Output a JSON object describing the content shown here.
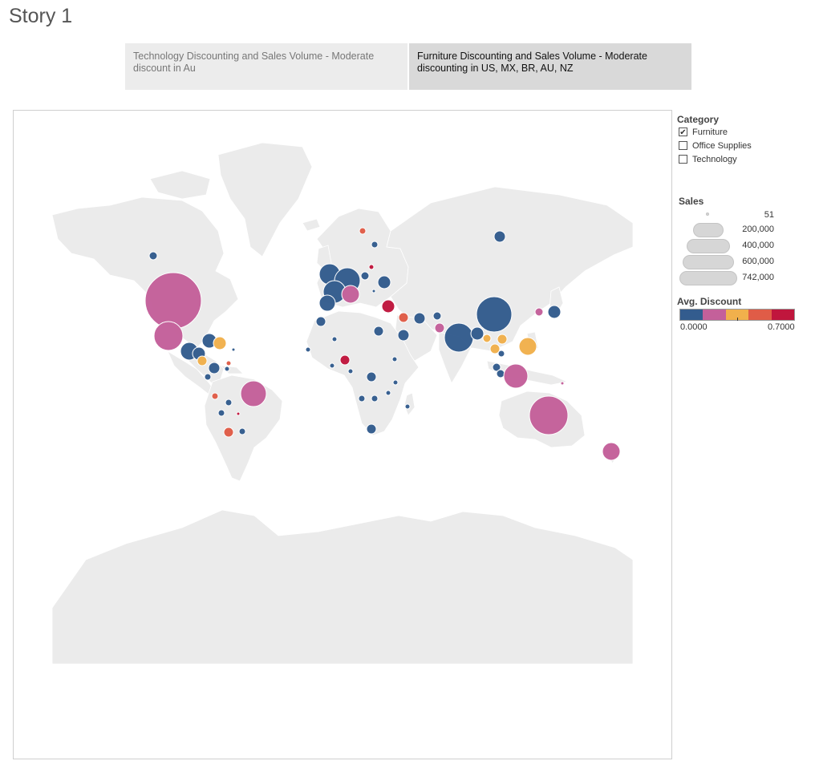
{
  "story": {
    "title": "Story 1"
  },
  "storypoints": [
    {
      "label": "Technology Discounting and Sales Volume - Moderate discount in Au",
      "selected": false
    },
    {
      "label": "Furniture Discounting and Sales Volume - Moderate discounting in US, MX, BR, AU, NZ",
      "selected": true
    }
  ],
  "legend": {
    "category": {
      "title": "Category",
      "items": [
        {
          "label": "Furniture",
          "checked": true
        },
        {
          "label": "Office Supplies",
          "checked": false
        },
        {
          "label": "Technology",
          "checked": false
        }
      ]
    },
    "sales": {
      "title": "Sales",
      "values": [
        "51",
        "200,000",
        "400,000",
        "600,000",
        "742,000"
      ]
    },
    "discount": {
      "title": "Avg. Discount",
      "min": "0.0000",
      "max": "0.7000",
      "colors": [
        "#335c8e",
        "#c4609a",
        "#f1b04c",
        "#e05c47",
        "#c0163d"
      ]
    }
  },
  "colors": {
    "land": "#ebebeb",
    "border": "#ffffff"
  }
}
